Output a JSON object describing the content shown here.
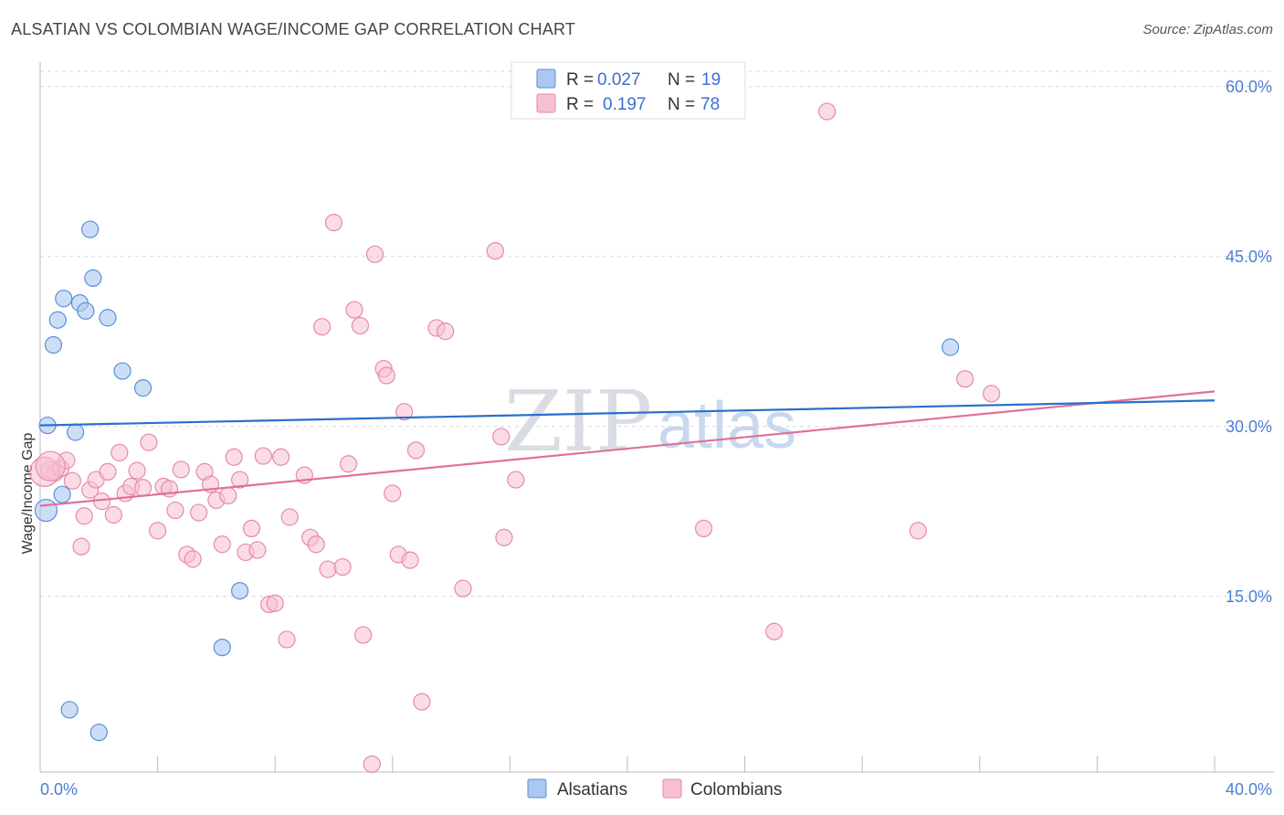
{
  "header": {
    "title": "ALSATIAN VS COLOMBIAN WAGE/INCOME GAP CORRELATION CHART",
    "source": "Source: ZipAtlas.com"
  },
  "colors": {
    "alsatian_fill": "#aac8f0",
    "alsatian_stroke": "#5a8fd8",
    "alsatian_line": "#2a6fcc",
    "colombian_fill": "#f7c0d0",
    "colombian_stroke": "#e68aa8",
    "colombian_line": "#e0709a",
    "grid": "#d8d8d8",
    "tick_label": "#4a7fd4"
  },
  "legend": {
    "r_label": "R =",
    "n_label": "N =",
    "alsatian_r": "0.027",
    "alsatian_n": "19",
    "colombian_r": "0.197",
    "colombian_n": "78"
  },
  "watermark": {
    "zip": "ZIP",
    "atlas": "atlas"
  },
  "chart_data": {
    "type": "scatter",
    "title": "ALSATIAN VS COLOMBIAN WAGE/INCOME GAP CORRELATION CHART",
    "xlabel": "",
    "ylabel": "Wage/Income Gap",
    "xlim": [
      0,
      40
    ],
    "ylim": [
      -0.5,
      62
    ],
    "x_tick_labels": [
      "0.0%",
      "40.0%"
    ],
    "y_ticks": [
      15,
      30,
      45,
      60
    ],
    "y_tick_labels": [
      "15.0%",
      "30.0%",
      "45.0%",
      "60.0%"
    ],
    "grid": true,
    "series": [
      {
        "name": "Alsatians",
        "r": 0.027,
        "n": 19,
        "trend": [
          [
            0,
            30.1
          ],
          [
            40,
            32.3
          ]
        ],
        "points": [
          [
            0.2,
            22.6
          ],
          [
            0.25,
            30.1
          ],
          [
            0.45,
            37.2
          ],
          [
            0.6,
            39.4
          ],
          [
            0.8,
            41.3
          ],
          [
            0.75,
            24.0
          ],
          [
            1.2,
            29.5
          ],
          [
            1.35,
            40.9
          ],
          [
            1.55,
            40.2
          ],
          [
            1.7,
            47.4
          ],
          [
            1.8,
            43.1
          ],
          [
            2.3,
            39.6
          ],
          [
            2.8,
            34.9
          ],
          [
            3.5,
            33.4
          ],
          [
            6.8,
            15.5
          ],
          [
            6.2,
            10.5
          ],
          [
            1.0,
            5.0
          ],
          [
            2.0,
            3.0
          ],
          [
            31.0,
            37.0
          ]
        ]
      },
      {
        "name": "Colombians",
        "r": 0.197,
        "n": 78,
        "trend": [
          [
            0,
            23.0
          ],
          [
            40,
            33.1
          ]
        ],
        "points": [
          [
            0.3,
            26.2
          ],
          [
            0.5,
            25.9
          ],
          [
            0.7,
            26.3
          ],
          [
            0.9,
            27.0
          ],
          [
            1.1,
            25.2
          ],
          [
            1.4,
            19.4
          ],
          [
            1.5,
            22.1
          ],
          [
            1.7,
            24.4
          ],
          [
            1.9,
            25.3
          ],
          [
            2.1,
            23.4
          ],
          [
            2.3,
            26.0
          ],
          [
            2.5,
            22.2
          ],
          [
            2.7,
            27.7
          ],
          [
            2.9,
            24.1
          ],
          [
            3.1,
            24.7
          ],
          [
            3.3,
            26.1
          ],
          [
            3.5,
            24.6
          ],
          [
            3.7,
            28.6
          ],
          [
            4.0,
            20.8
          ],
          [
            4.2,
            24.7
          ],
          [
            4.4,
            24.5
          ],
          [
            4.6,
            22.6
          ],
          [
            4.8,
            26.2
          ],
          [
            5.0,
            18.7
          ],
          [
            5.2,
            18.3
          ],
          [
            5.4,
            22.4
          ],
          [
            5.6,
            26.0
          ],
          [
            5.8,
            24.9
          ],
          [
            6.0,
            23.5
          ],
          [
            6.2,
            19.6
          ],
          [
            6.4,
            23.9
          ],
          [
            6.6,
            27.3
          ],
          [
            6.8,
            25.3
          ],
          [
            7.0,
            18.9
          ],
          [
            7.2,
            21.0
          ],
          [
            7.4,
            19.1
          ],
          [
            7.6,
            27.4
          ],
          [
            7.8,
            14.3
          ],
          [
            8.0,
            14.4
          ],
          [
            8.2,
            27.3
          ],
          [
            8.4,
            11.2
          ],
          [
            8.5,
            22.0
          ],
          [
            9.0,
            25.7
          ],
          [
            9.2,
            20.2
          ],
          [
            9.4,
            19.6
          ],
          [
            9.6,
            38.8
          ],
          [
            9.8,
            17.4
          ],
          [
            10.0,
            48.0
          ],
          [
            10.3,
            17.6
          ],
          [
            10.5,
            26.7
          ],
          [
            10.7,
            40.3
          ],
          [
            10.9,
            38.9
          ],
          [
            11.0,
            11.6
          ],
          [
            11.3,
            0.2
          ],
          [
            11.4,
            45.2
          ],
          [
            11.7,
            35.1
          ],
          [
            11.8,
            34.5
          ],
          [
            12.0,
            24.1
          ],
          [
            12.2,
            18.7
          ],
          [
            12.4,
            31.3
          ],
          [
            12.6,
            18.2
          ],
          [
            12.8,
            27.9
          ],
          [
            13.0,
            5.7
          ],
          [
            13.5,
            38.7
          ],
          [
            13.8,
            38.4
          ],
          [
            14.4,
            15.7
          ],
          [
            15.5,
            45.5
          ],
          [
            15.7,
            29.1
          ],
          [
            15.8,
            20.2
          ],
          [
            16.2,
            25.3
          ],
          [
            22.6,
            21.0
          ],
          [
            25.0,
            11.9
          ],
          [
            26.8,
            57.8
          ],
          [
            29.9,
            20.8
          ],
          [
            31.5,
            34.2
          ],
          [
            32.4,
            32.9
          ],
          [
            0.15,
            26.0
          ],
          [
            0.35,
            26.5
          ]
        ]
      }
    ]
  },
  "bottom_legend": [
    "Alsatians",
    "Colombians"
  ]
}
